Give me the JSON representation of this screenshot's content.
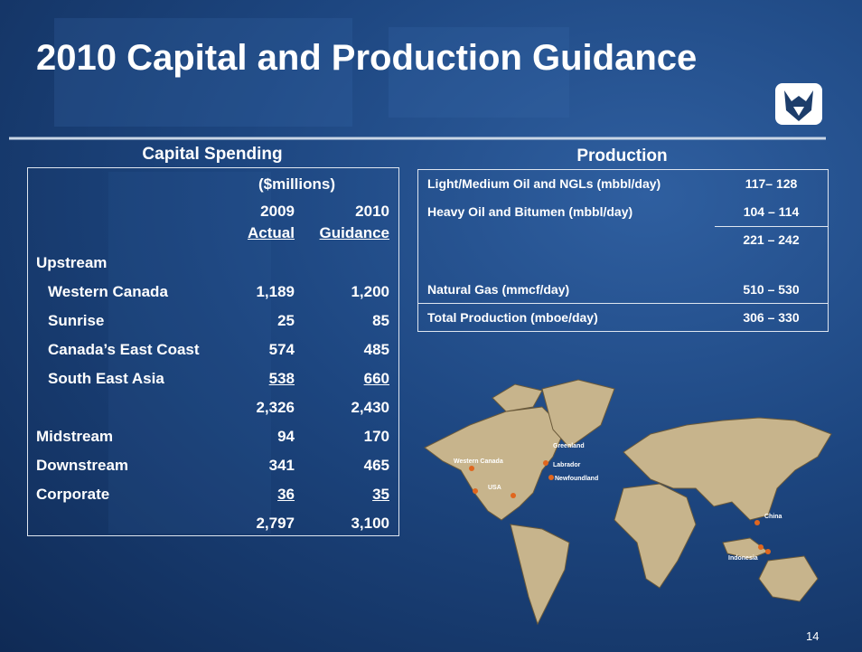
{
  "title": "2010 Capital and Production Guidance",
  "capital": {
    "heading": "Capital Spending",
    "units": "($millions)",
    "columns": [
      {
        "year": "2009",
        "kind": "Actual"
      },
      {
        "year": "2010",
        "kind": "Guidance"
      }
    ],
    "rows": [
      {
        "label": "Upstream",
        "group": true
      },
      {
        "label": "Western Canada",
        "actual": "1,189",
        "guidance": "1,200",
        "indent": true
      },
      {
        "label": "Sunrise",
        "actual": "25",
        "guidance": "85",
        "indent": true
      },
      {
        "label": "Canada’s East Coast",
        "actual": "574",
        "guidance": "485",
        "indent": true
      },
      {
        "label": "South East Asia",
        "actual": "538",
        "guidance": "660",
        "indent": true,
        "underlined": true
      },
      {
        "actual": "2,326",
        "guidance": "2,430"
      },
      {
        "label": "Midstream",
        "actual": "94",
        "guidance": "170"
      },
      {
        "label": "Downstream",
        "actual": "341",
        "guidance": "465"
      },
      {
        "label": "Corporate",
        "actual": "36",
        "guidance": "35",
        "underlined": true
      },
      {
        "actual": "2,797",
        "guidance": "3,100"
      }
    ]
  },
  "production": {
    "heading": "Production",
    "rows": [
      {
        "label": "Light/Medium Oil and NGLs (mbbl/day)",
        "value": "117– 128"
      },
      {
        "label": "Heavy Oil and Bitumen (mbbl/day)",
        "value": "104 – 114"
      },
      {
        "value": "221 – 242"
      },
      {
        "label": "Natural Gas (mmcf/day)",
        "value": "510 – 530"
      },
      {
        "label": "Total Production (mboe/day)",
        "value": "306 – 330"
      }
    ]
  },
  "map_labels": [
    "Western Canada",
    "USA",
    "Greenland",
    "Labrador",
    "Newfoundland",
    "China",
    "Indonesia"
  ],
  "page_number": "14"
}
